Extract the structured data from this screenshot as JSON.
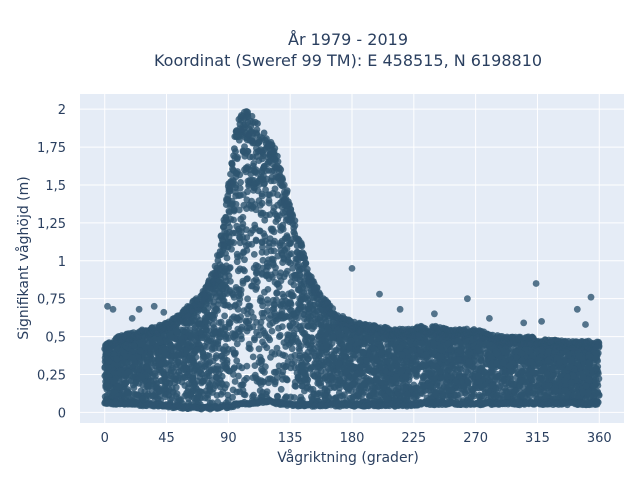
{
  "chart_data": {
    "type": "scatter",
    "title_line1": "År 1979 - 2019",
    "title_line2": "Koordinat (Sweref 99 TM): E 458515, N 6198810",
    "xlabel": "Vågriktning (grader)",
    "ylabel": "Signifikant våghöjd (m)",
    "xlim": [
      -18,
      378
    ],
    "ylim": [
      -0.07,
      2.1
    ],
    "xticks": [
      0,
      45,
      90,
      135,
      180,
      225,
      270,
      315,
      360
    ],
    "xtick_labels": [
      "0",
      "45",
      "90",
      "135",
      "180",
      "225",
      "270",
      "315",
      "360"
    ],
    "yticks": [
      0,
      0.25,
      0.5,
      0.75,
      1,
      1.25,
      1.5,
      1.75,
      2
    ],
    "ytick_labels": [
      "0",
      "0,25",
      "0,5",
      "0,75",
      "1",
      "1,25",
      "1,5",
      "1,75",
      "2"
    ],
    "grid": true,
    "marker_color": "#2e5570",
    "plot_bg": "#e5ecf6",
    "envelope": {
      "direction_deg": [
        0,
        10,
        20,
        30,
        40,
        50,
        60,
        70,
        80,
        85,
        90,
        95,
        100,
        105,
        110,
        115,
        120,
        125,
        130,
        135,
        140,
        145,
        150,
        160,
        170,
        180,
        190,
        200,
        210,
        220,
        230,
        240,
        250,
        260,
        270,
        280,
        290,
        300,
        310,
        320,
        330,
        340,
        350,
        360
      ],
      "max_height_m": [
        0.45,
        0.5,
        0.53,
        0.55,
        0.58,
        0.62,
        0.7,
        0.78,
        0.95,
        1.2,
        1.5,
        1.85,
        2.02,
        1.98,
        1.92,
        1.88,
        1.82,
        1.72,
        1.55,
        1.4,
        1.22,
        1.05,
        0.9,
        0.75,
        0.65,
        0.6,
        0.58,
        0.57,
        0.55,
        0.55,
        0.57,
        0.57,
        0.55,
        0.55,
        0.55,
        0.52,
        0.5,
        0.5,
        0.5,
        0.48,
        0.48,
        0.47,
        0.47,
        0.47
      ],
      "min_height_m": [
        0.06,
        0.05,
        0.05,
        0.04,
        0.04,
        0.03,
        0.02,
        0.02,
        0.02,
        0.03,
        0.03,
        0.04,
        0.05,
        0.05,
        0.06,
        0.06,
        0.06,
        0.05,
        0.05,
        0.04,
        0.04,
        0.04,
        0.04,
        0.04,
        0.04,
        0.04,
        0.04,
        0.04,
        0.04,
        0.04,
        0.05,
        0.05,
        0.05,
        0.05,
        0.05,
        0.05,
        0.05,
        0.05,
        0.05,
        0.05,
        0.05,
        0.05,
        0.05,
        0.05
      ]
    },
    "outliers": [
      {
        "x": 2,
        "y": 0.7
      },
      {
        "x": 6,
        "y": 0.68
      },
      {
        "x": 20,
        "y": 0.62
      },
      {
        "x": 25,
        "y": 0.68
      },
      {
        "x": 36,
        "y": 0.7
      },
      {
        "x": 43,
        "y": 0.66
      },
      {
        "x": 180,
        "y": 0.95
      },
      {
        "x": 200,
        "y": 0.78
      },
      {
        "x": 215,
        "y": 0.68
      },
      {
        "x": 240,
        "y": 0.65
      },
      {
        "x": 264,
        "y": 0.75
      },
      {
        "x": 280,
        "y": 0.62
      },
      {
        "x": 314,
        "y": 0.85
      },
      {
        "x": 318,
        "y": 0.6
      },
      {
        "x": 344,
        "y": 0.68
      },
      {
        "x": 354,
        "y": 0.76
      },
      {
        "x": 350,
        "y": 0.58
      },
      {
        "x": 305,
        "y": 0.59
      }
    ]
  }
}
